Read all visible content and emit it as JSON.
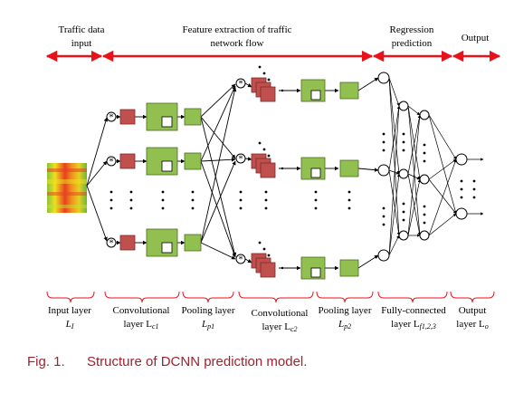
{
  "header": {
    "traffic_input": [
      "Traffic data",
      "input"
    ],
    "feature_extraction": [
      "Feature extraction of traffic",
      "network flow"
    ],
    "regression": [
      "Regression",
      "prediction"
    ],
    "output": "Output"
  },
  "layers": {
    "input": {
      "name": "Input layer",
      "sub": "L",
      "subscript": "I"
    },
    "conv1": {
      "name": "Convolutional",
      "sub": "layer L",
      "subscript": "c1"
    },
    "pool1": {
      "name": "Pooling layer",
      "sub": "L",
      "subscript": "p1"
    },
    "conv2": {
      "name": "Convolutional",
      "sub": "layer L",
      "subscript": "c2"
    },
    "pool2": {
      "name": "Pooling layer",
      "sub": "L",
      "subscript": "p2"
    },
    "fc": {
      "name": "Fully-connected",
      "sub": "layer L",
      "subscript": "f1,2,3"
    },
    "output": {
      "name": "Output",
      "sub": "layer L",
      "subscript": "o"
    }
  },
  "caption": {
    "label": "Fig. 1.",
    "text": "Structure of DCNN prediction model."
  },
  "colors": {
    "header_arrow": "#e8121a",
    "brace": "#e8121a",
    "conv_fill": "#c0504d",
    "pool_fill": "#92c050",
    "caption": "#a0222e",
    "line": "#000000"
  }
}
